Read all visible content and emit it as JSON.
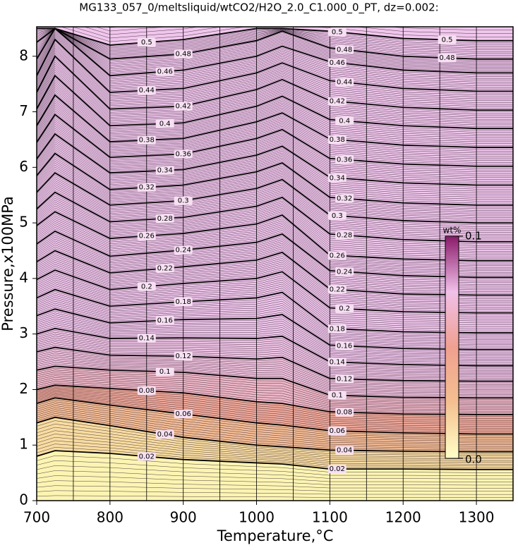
{
  "chart_data": {
    "type": "contour",
    "title": "MG133_057_0/meltsliquid/wtCO2/H2O_2.0_C1.000_0_PT, dz=0.002:",
    "x_label": "Temperature,°C",
    "y_label": "Pressure,x100MPa",
    "xlim": [
      700,
      1350
    ],
    "ylim": [
      0,
      8.53
    ],
    "xticks": [
      700,
      800,
      900,
      1000,
      1100,
      1200,
      1300
    ],
    "yticks": [
      0,
      1,
      2,
      3,
      4,
      5,
      6,
      7,
      8
    ],
    "xgrid": [
      750,
      800,
      850,
      900,
      950,
      1000,
      1050,
      1100,
      1150,
      1200,
      1250,
      1300
    ],
    "x": [
      700,
      725,
      800,
      900,
      1000,
      1035,
      1100,
      1200,
      1300,
      1350
    ],
    "series": [
      {
        "name": "0.02",
        "color": "#fcf4b2",
        "values": [
          0.8,
          0.9,
          0.85,
          0.74,
          0.68,
          0.66,
          0.57,
          0.57,
          0.56,
          0.56
        ]
      },
      {
        "name": "0.04",
        "color": "#f8dca0",
        "values": [
          1.4,
          1.5,
          1.35,
          1.14,
          1.0,
          0.97,
          0.91,
          0.89,
          0.88,
          0.88
        ]
      },
      {
        "name": "0.06",
        "color": "#f4bc94",
        "values": [
          1.75,
          1.85,
          1.72,
          1.56,
          1.4,
          1.36,
          1.26,
          1.22,
          1.2,
          1.2
        ]
      },
      {
        "name": "0.08",
        "color": "#f0a898",
        "values": [
          2.0,
          2.08,
          2.02,
          1.94,
          1.78,
          1.75,
          1.6,
          1.56,
          1.55,
          1.55
        ]
      },
      {
        "name": "0.1",
        "color": "#eeb6c6",
        "values": [
          2.35,
          2.42,
          2.35,
          2.31,
          2.2,
          2.2,
          1.9,
          1.86,
          1.85,
          1.85
        ]
      },
      {
        "name": "0.12",
        "color": "#efc0dc",
        "values": [
          2.68,
          2.76,
          2.62,
          2.6,
          2.55,
          2.58,
          2.2,
          2.16,
          2.15,
          2.15
        ]
      },
      {
        "name": "0.14",
        "color": "#f0c4e6",
        "values": [
          3.0,
          3.1,
          2.92,
          2.93,
          2.92,
          2.96,
          2.5,
          2.45,
          2.43,
          2.43
        ]
      },
      {
        "name": "0.16",
        "color": "#f0c6ec",
        "values": [
          3.33,
          3.45,
          3.2,
          3.26,
          3.28,
          3.35,
          2.8,
          2.74,
          2.72,
          2.72
        ]
      },
      {
        "name": "0.18",
        "color": "#f0c6ec",
        "values": [
          3.65,
          3.8,
          3.5,
          3.58,
          3.65,
          3.75,
          3.1,
          3.04,
          3.02,
          3.02
        ]
      },
      {
        "name": "0.2",
        "color": "#f0c6ec",
        "values": [
          3.98,
          4.15,
          3.8,
          3.91,
          4.0,
          4.12,
          3.47,
          3.4,
          3.38,
          3.38
        ]
      },
      {
        "name": "0.22",
        "color": "#f0c6ec",
        "values": [
          4.3,
          4.5,
          4.1,
          4.21,
          4.33,
          4.47,
          3.81,
          3.72,
          3.7,
          3.7
        ]
      },
      {
        "name": "0.24",
        "color": "#f0c6ec",
        "values": [
          4.62,
          4.85,
          4.4,
          4.51,
          4.65,
          4.8,
          4.14,
          4.05,
          4.02,
          4.02
        ]
      },
      {
        "name": "0.26",
        "color": "#f0c6ec",
        "values": [
          4.95,
          5.2,
          4.72,
          4.81,
          4.98,
          5.14,
          4.42,
          4.35,
          4.32,
          4.32
        ]
      },
      {
        "name": "0.28",
        "color": "#f0c6ec",
        "values": [
          5.25,
          5.55,
          5.02,
          5.1,
          5.3,
          5.46,
          4.8,
          4.7,
          4.66,
          4.66
        ]
      },
      {
        "name": "0.3",
        "color": "#f0c6ec",
        "values": [
          5.55,
          5.9,
          5.32,
          5.4,
          5.62,
          5.78,
          5.14,
          5.04,
          5.0,
          5.0
        ]
      },
      {
        "name": "0.32",
        "color": "#f0c6ec",
        "values": [
          5.85,
          6.25,
          5.6,
          5.68,
          5.92,
          6.08,
          5.46,
          5.36,
          5.32,
          5.32
        ]
      },
      {
        "name": "0.34",
        "color": "#f0c6ec",
        "values": [
          6.15,
          6.6,
          5.9,
          5.96,
          6.22,
          6.38,
          5.82,
          5.72,
          5.68,
          5.68
        ]
      },
      {
        "name": "0.36",
        "color": "#f0c6ec",
        "values": [
          6.45,
          6.95,
          6.18,
          6.24,
          6.52,
          6.68,
          6.16,
          6.06,
          6.02,
          6.02
        ]
      },
      {
        "name": "0.38",
        "color": "#f0c6ec",
        "values": [
          6.75,
          7.3,
          6.46,
          6.52,
          6.82,
          6.98,
          6.51,
          6.4,
          6.36,
          6.36
        ]
      },
      {
        "name": "0.4",
        "color": "#f0c6ec",
        "values": [
          7.05,
          7.65,
          6.75,
          6.8,
          7.1,
          7.28,
          6.86,
          6.75,
          6.7,
          6.7
        ]
      },
      {
        "name": "0.42",
        "color": "#f0c6ec",
        "values": [
          7.35,
          8.0,
          7.05,
          7.1,
          7.4,
          7.58,
          7.2,
          7.08,
          7.03,
          7.03
        ]
      },
      {
        "name": "0.44",
        "color": "#f0c6ec",
        "values": [
          7.65,
          8.3,
          7.35,
          7.42,
          7.7,
          7.88,
          7.56,
          7.42,
          7.37,
          7.37
        ]
      },
      {
        "name": "0.46",
        "color": "#f0c6ec",
        "values": [
          7.95,
          8.5,
          7.65,
          7.75,
          8.0,
          8.18,
          7.9,
          7.75,
          7.7,
          7.7
        ]
      },
      {
        "name": "0.48",
        "color": "#f0c6ec",
        "values": [
          8.25,
          8.5,
          7.95,
          8.04,
          8.28,
          8.45,
          8.15,
          8.0,
          7.95,
          7.95
        ]
      },
      {
        "name": "0.5",
        "color": "#f0c6ec",
        "values": [
          8.5,
          8.5,
          8.2,
          8.3,
          8.5,
          8.5,
          8.45,
          8.32,
          8.28,
          8.28
        ]
      }
    ],
    "colorbar": {
      "label": "wt%",
      "colors": [
        "#ffffc8",
        "#f4c090",
        "#f0a090",
        "#f0c0e8",
        "#8a1a6a"
      ],
      "ticks": [
        {
          "value": 0,
          "label": "0.0"
        },
        0.1
      ]
    }
  }
}
